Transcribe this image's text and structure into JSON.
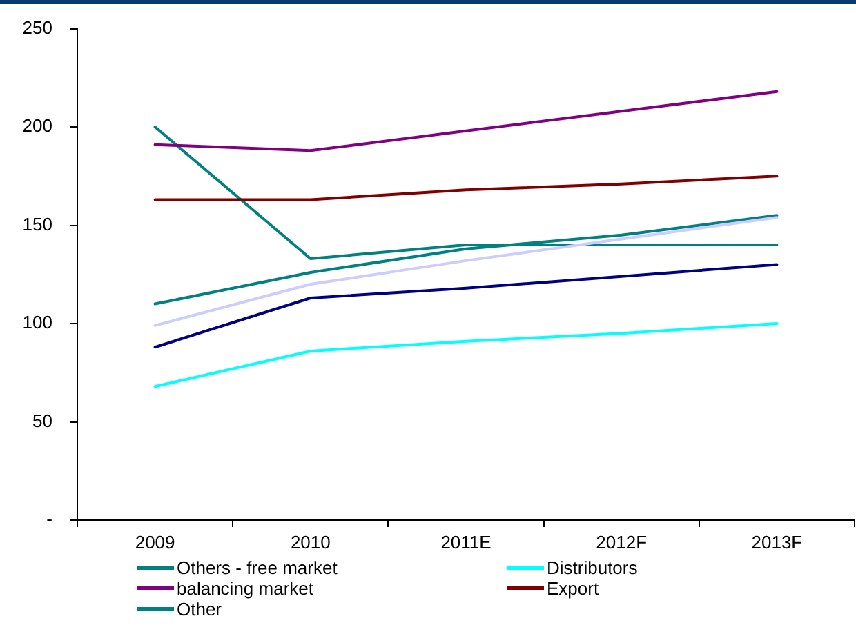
{
  "chart_data": {
    "type": "line",
    "categories": [
      "2009",
      "2010",
      "2011E",
      "2012F",
      "2013F"
    ],
    "ylim": [
      0,
      250
    ],
    "yticks": [
      {
        "value": 0,
        "label": "-"
      },
      50,
      100,
      150,
      200,
      250
    ],
    "grid": false,
    "legend": "bottom",
    "marker": "none",
    "line_style": "solid",
    "series": [
      {
        "name": null,
        "color": "#ccccff",
        "values": [
          99,
          120,
          132,
          143,
          154
        ]
      },
      {
        "name": null,
        "color": "#000080",
        "values": [
          88,
          113,
          118,
          124,
          130
        ]
      },
      {
        "name": "Others - free market",
        "color": "#008080",
        "values": [
          110,
          126,
          138,
          145,
          155
        ]
      },
      {
        "name": "Distributors",
        "color": "#00ffff",
        "values": [
          68,
          86,
          91,
          95,
          100
        ]
      },
      {
        "name": "balancing market",
        "color": "#800080",
        "values": [
          191,
          188,
          198,
          208,
          218
        ]
      },
      {
        "name": "Export",
        "color": "#800000",
        "values": [
          163,
          163,
          168,
          171,
          175
        ]
      },
      {
        "name": "Other",
        "color": "#008080",
        "values": [
          200,
          133,
          140,
          140,
          140
        ]
      }
    ]
  }
}
